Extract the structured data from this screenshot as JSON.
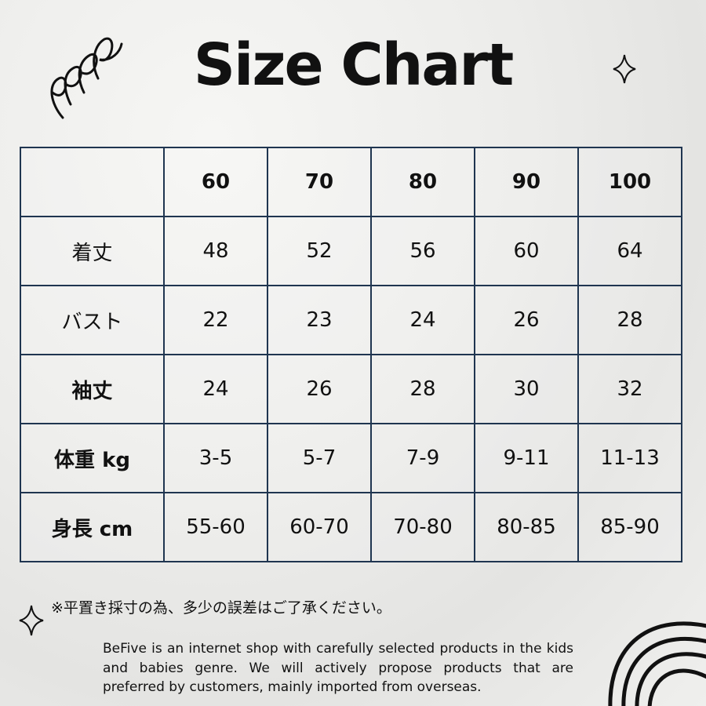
{
  "title": "Size Chart",
  "table": {
    "headers": [
      "",
      "60",
      "70",
      "80",
      "90",
      "100"
    ],
    "rows": [
      {
        "label": "着丈",
        "bold": false,
        "values": [
          "48",
          "52",
          "56",
          "60",
          "64"
        ]
      },
      {
        "label": "バスト",
        "bold": false,
        "values": [
          "22",
          "23",
          "24",
          "26",
          "28"
        ]
      },
      {
        "label": "袖丈",
        "bold": true,
        "values": [
          "24",
          "26",
          "28",
          "30",
          "32"
        ]
      },
      {
        "label": "体重 kg",
        "bold": true,
        "values": [
          "3-5",
          "5-7",
          "7-9",
          "9-11",
          "11-13"
        ]
      },
      {
        "label": "身長 cm",
        "bold": true,
        "values": [
          "55-60",
          "60-70",
          "70-80",
          "80-85",
          "85-90"
        ]
      }
    ]
  },
  "note": "※平置き採寸の為、多少の誤差はご了承ください。",
  "about": "BeFive is an internet shop with carefully selected products in the kids and babies genre. We will actively propose products that are preferred by customers, mainly imported from overseas.",
  "colors": {
    "border": "#1f3550",
    "text": "#111111"
  }
}
